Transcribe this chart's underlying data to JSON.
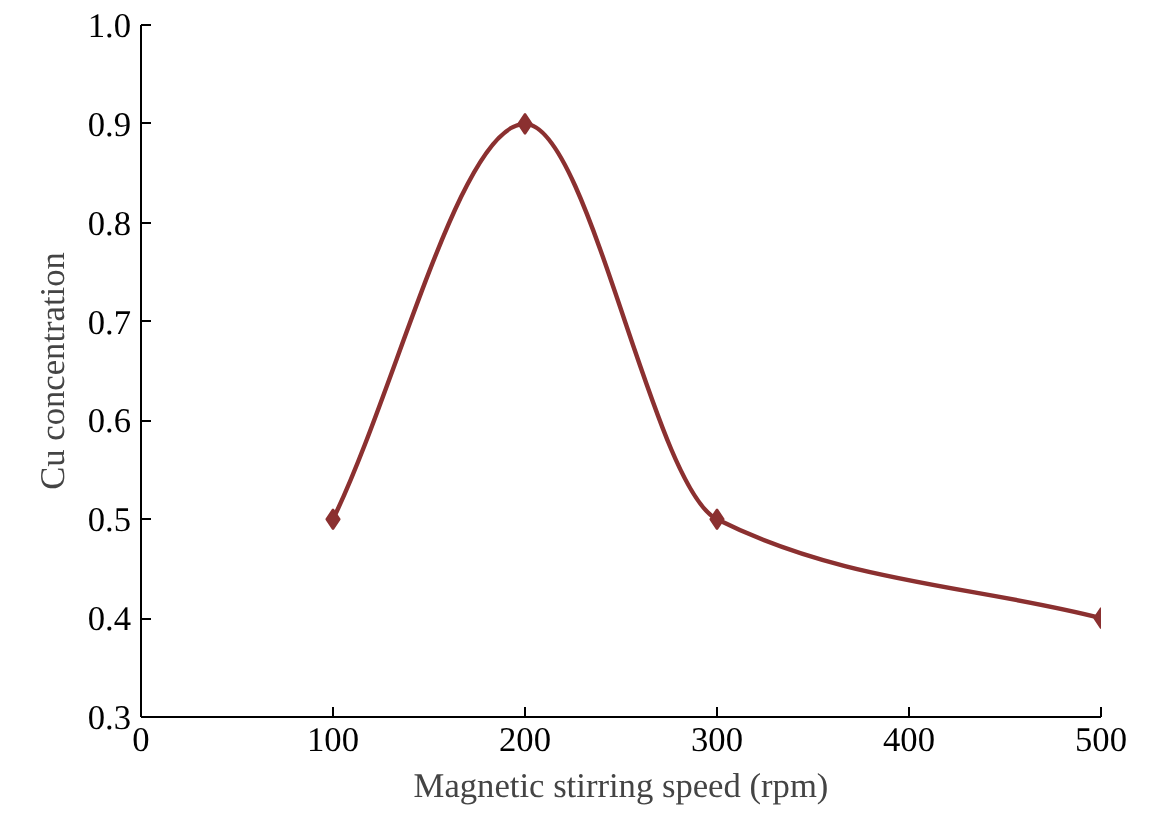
{
  "chart_data": {
    "type": "line",
    "xlabel": "Magnetic stirring speed (rpm)",
    "ylabel": "Cu concentration",
    "x": [
      100,
      200,
      300,
      500
    ],
    "series": [
      {
        "color": "#8b3030",
        "values": [
          0.5,
          0.9,
          0.5,
          0.4
        ]
      }
    ],
    "xlim": [
      0,
      500
    ],
    "xticks": [
      0,
      100,
      200,
      300,
      400,
      500
    ],
    "ylim": [
      0.3,
      1.0
    ],
    "yticks": [
      0.3,
      0.4,
      0.5,
      0.6,
      0.7,
      0.8,
      0.9,
      {
        "value": 1.0,
        "label": "1.0"
      }
    ],
    "grid": false,
    "marker": "diamond",
    "line_style": "solid"
  }
}
